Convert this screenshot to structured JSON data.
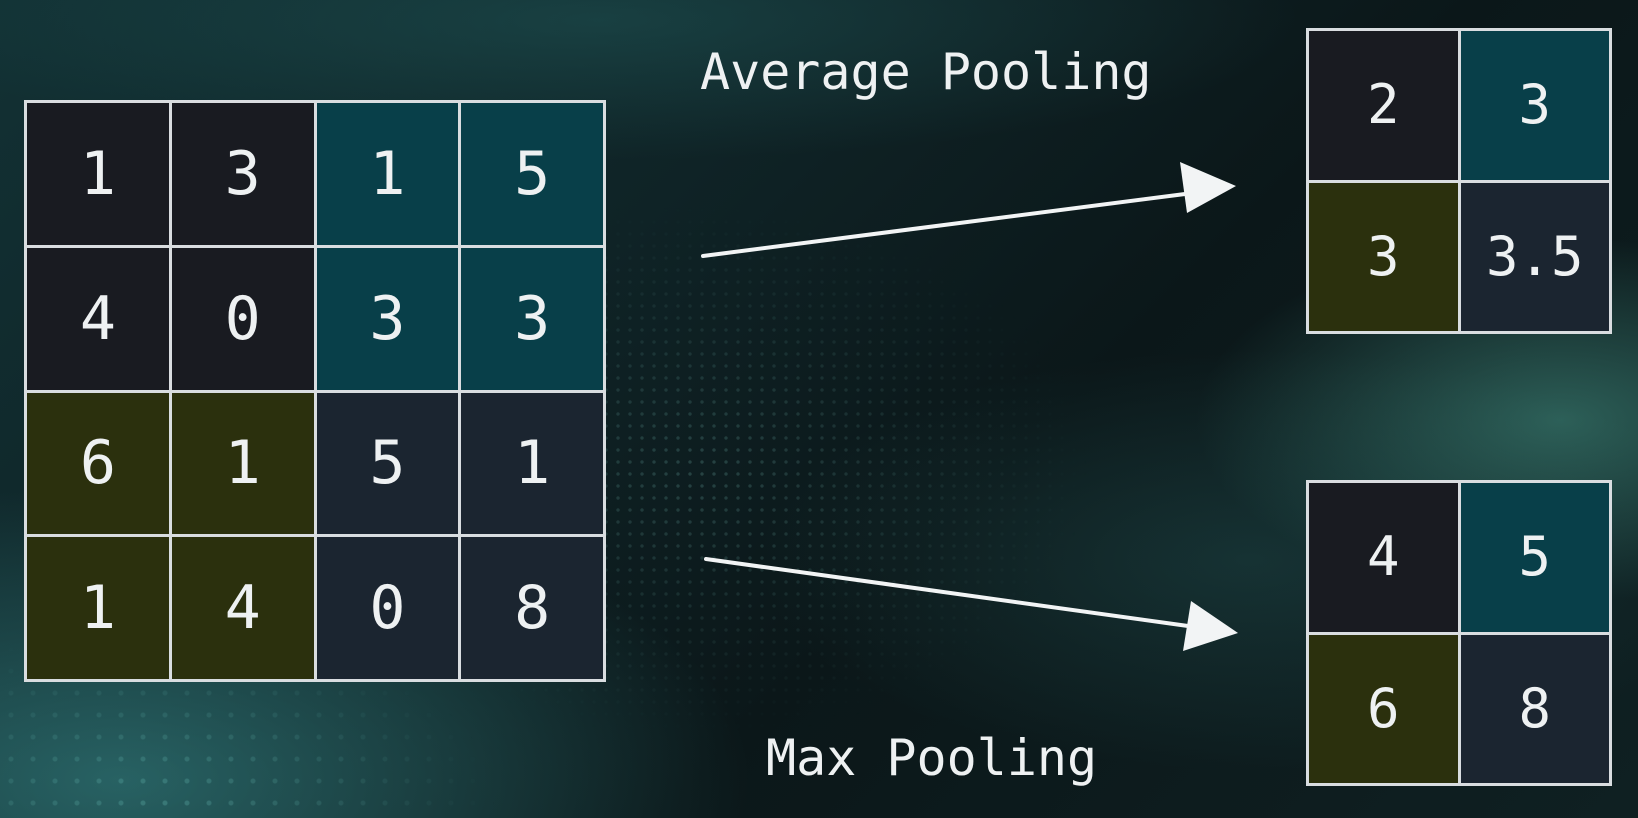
{
  "labels": {
    "average": "Average Pooling",
    "max": "Max Pooling"
  },
  "input_matrix": [
    [
      "1",
      "3",
      "1",
      "5"
    ],
    [
      "4",
      "0",
      "3",
      "3"
    ],
    [
      "6",
      "1",
      "5",
      "1"
    ],
    [
      "1",
      "4",
      "0",
      "8"
    ]
  ],
  "average_pooling_output": [
    [
      "2",
      "3"
    ],
    [
      "3",
      "3.5"
    ]
  ],
  "max_pooling_output": [
    [
      "4",
      "5"
    ],
    [
      "6",
      "8"
    ]
  ],
  "colors": {
    "quadrant_top_left": "#191b21",
    "quadrant_top_right": "#083f49",
    "quadrant_bottom_left": "#2b300d",
    "quadrant_bottom_right": "#1b2530",
    "grid_lines": "#d9dde0",
    "text": "#eef1f2"
  }
}
